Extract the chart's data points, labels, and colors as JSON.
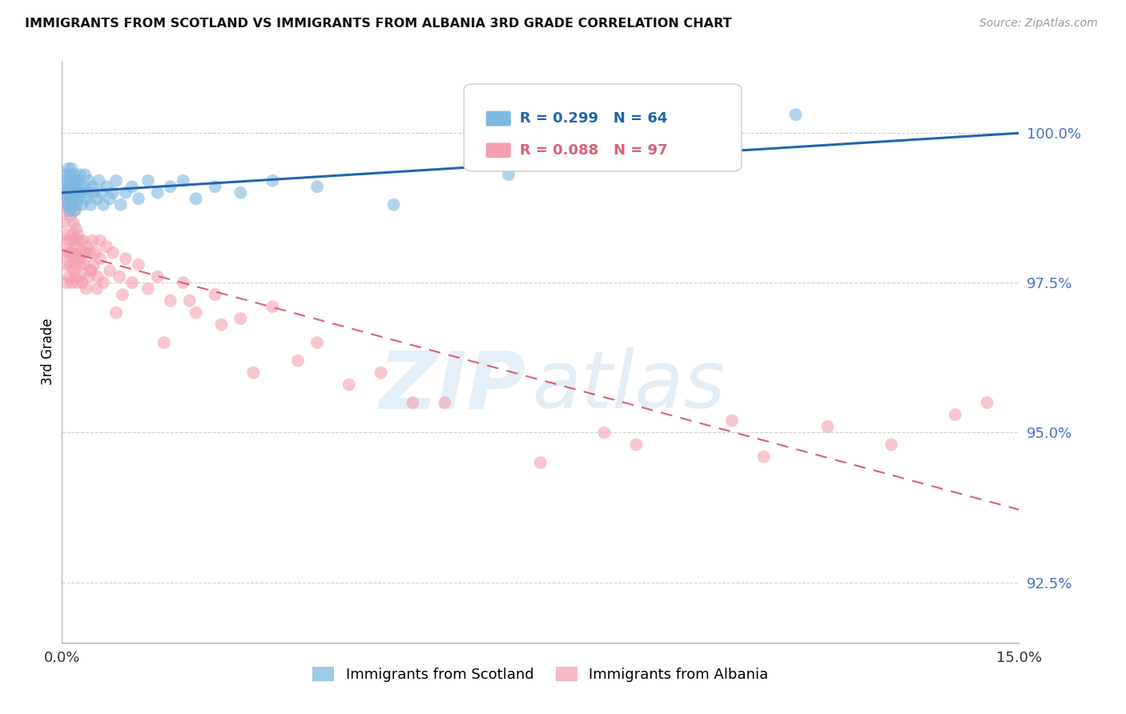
{
  "title": "IMMIGRANTS FROM SCOTLAND VS IMMIGRANTS FROM ALBANIA 3RD GRADE CORRELATION CHART",
  "source": "Source: ZipAtlas.com",
  "ylabel": "3rd Grade",
  "xlim": [
    0.0,
    15.0
  ],
  "ylim": [
    91.5,
    101.2
  ],
  "yticks": [
    92.5,
    95.0,
    97.5,
    100.0
  ],
  "ytick_labels": [
    "92.5%",
    "95.0%",
    "97.5%",
    "100.0%"
  ],
  "scotland_color": "#7eb8e0",
  "albania_color": "#f4a0b0",
  "scotland_line_color": "#2166ac",
  "albania_line_color": "#d9607a",
  "scotland_R": 0.299,
  "scotland_N": 64,
  "albania_R": 0.088,
  "albania_N": 97,
  "legend_label_scotland": "Immigrants from Scotland",
  "legend_label_albania": "Immigrants from Albania",
  "sc_x": [
    0.05,
    0.06,
    0.07,
    0.08,
    0.09,
    0.1,
    0.1,
    0.11,
    0.12,
    0.12,
    0.13,
    0.13,
    0.14,
    0.15,
    0.15,
    0.16,
    0.17,
    0.17,
    0.18,
    0.19,
    0.2,
    0.2,
    0.21,
    0.22,
    0.23,
    0.24,
    0.25,
    0.26,
    0.27,
    0.28,
    0.3,
    0.32,
    0.34,
    0.36,
    0.38,
    0.4,
    0.42,
    0.45,
    0.48,
    0.5,
    0.55,
    0.58,
    0.62,
    0.65,
    0.7,
    0.75,
    0.8,
    0.85,
    0.92,
    1.0,
    1.1,
    1.2,
    1.35,
    1.5,
    1.7,
    1.9,
    2.1,
    2.4,
    2.8,
    3.3,
    4.0,
    5.2,
    7.0,
    11.5
  ],
  "sc_y": [
    99.1,
    99.3,
    98.9,
    99.2,
    99.0,
    99.4,
    98.8,
    99.1,
    99.3,
    98.7,
    99.0,
    99.2,
    98.9,
    99.1,
    99.4,
    98.8,
    99.0,
    99.2,
    98.9,
    99.1,
    99.3,
    98.7,
    99.0,
    99.2,
    98.8,
    99.0,
    99.2,
    98.9,
    99.1,
    99.3,
    99.0,
    98.8,
    99.1,
    99.3,
    98.9,
    99.0,
    99.2,
    98.8,
    99.1,
    99.0,
    98.9,
    99.2,
    99.0,
    98.8,
    99.1,
    98.9,
    99.0,
    99.2,
    98.8,
    99.0,
    99.1,
    98.9,
    99.2,
    99.0,
    99.1,
    99.2,
    98.9,
    99.1,
    99.0,
    99.2,
    99.1,
    98.8,
    99.3,
    100.3
  ],
  "alb_x": [
    0.03,
    0.04,
    0.05,
    0.06,
    0.06,
    0.07,
    0.07,
    0.08,
    0.08,
    0.09,
    0.09,
    0.1,
    0.1,
    0.11,
    0.11,
    0.12,
    0.12,
    0.13,
    0.13,
    0.14,
    0.14,
    0.15,
    0.15,
    0.16,
    0.17,
    0.17,
    0.18,
    0.18,
    0.19,
    0.2,
    0.2,
    0.21,
    0.22,
    0.22,
    0.23,
    0.24,
    0.25,
    0.26,
    0.27,
    0.28,
    0.29,
    0.3,
    0.32,
    0.33,
    0.35,
    0.37,
    0.38,
    0.4,
    0.42,
    0.44,
    0.46,
    0.48,
    0.5,
    0.53,
    0.56,
    0.6,
    0.65,
    0.7,
    0.75,
    0.8,
    0.9,
    1.0,
    1.1,
    1.2,
    1.35,
    1.5,
    1.7,
    1.9,
    2.1,
    2.4,
    2.8,
    3.3,
    4.0,
    5.0,
    6.0,
    7.5,
    8.5,
    9.0,
    10.5,
    11.0,
    12.0,
    13.0,
    14.0,
    14.5,
    2.5,
    3.7,
    0.55,
    0.85,
    1.6,
    2.0,
    3.0,
    4.5,
    5.5,
    0.35,
    0.45,
    0.6,
    0.95
  ],
  "alb_y": [
    98.5,
    98.0,
    99.0,
    97.8,
    98.8,
    98.2,
    99.1,
    97.5,
    98.7,
    98.3,
    99.0,
    98.0,
    98.9,
    97.6,
    98.8,
    98.2,
    99.1,
    97.8,
    98.6,
    98.0,
    98.9,
    97.5,
    98.7,
    98.3,
    98.0,
    98.9,
    97.7,
    98.5,
    98.2,
    97.9,
    98.7,
    97.6,
    98.4,
    97.8,
    98.1,
    97.5,
    98.3,
    97.9,
    98.2,
    97.6,
    98.0,
    97.8,
    97.5,
    98.2,
    97.8,
    98.0,
    97.4,
    98.1,
    97.6,
    98.0,
    97.7,
    98.2,
    97.8,
    98.0,
    97.6,
    97.9,
    97.5,
    98.1,
    97.7,
    98.0,
    97.6,
    97.9,
    97.5,
    97.8,
    97.4,
    97.6,
    97.2,
    97.5,
    97.0,
    97.3,
    96.9,
    97.1,
    96.5,
    96.0,
    95.5,
    94.5,
    95.0,
    94.8,
    95.2,
    94.6,
    95.1,
    94.8,
    95.3,
    95.5,
    96.8,
    96.2,
    97.4,
    97.0,
    96.5,
    97.2,
    96.0,
    95.8,
    95.5,
    98.0,
    97.7,
    98.2,
    97.3
  ]
}
